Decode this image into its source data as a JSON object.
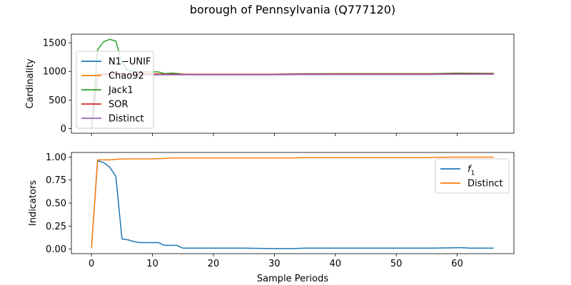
{
  "title": "borough of Pennsylvania (Q777120)",
  "colors": {
    "blue": "#1f77b4",
    "orange": "#ff7f0e",
    "green": "#2ca02c",
    "red": "#d62728",
    "purple": "#9467bd"
  },
  "chart_data": [
    {
      "type": "line",
      "ylabel": "Cardinality",
      "xlim": [
        -3.3,
        69.3
      ],
      "ylim": [
        -80,
        1650
      ],
      "yticks": [
        "0",
        "500",
        "1000",
        "1500"
      ],
      "ytick_values": [
        0,
        500,
        1000,
        1500
      ],
      "xticks": [
        0,
        10,
        20,
        30,
        40,
        50,
        60
      ],
      "show_xticklabels": false,
      "legend": "upper-left",
      "series": [
        {
          "name": "N1−UNIF",
          "color": "#1f77b4",
          "x": [
            0,
            1,
            2,
            3,
            4,
            5,
            6,
            8,
            10,
            12,
            14,
            16,
            20,
            25,
            30,
            35,
            40,
            45,
            50,
            55,
            60,
            66
          ],
          "y": [
            0,
            930,
            940,
            945,
            945,
            945,
            945,
            945,
            945,
            945,
            945,
            945,
            945,
            945,
            945,
            950,
            950,
            950,
            950,
            950,
            955,
            955
          ]
        },
        {
          "name": "Chao92",
          "color": "#ff7f0e",
          "x": [
            0,
            1,
            2,
            3,
            4,
            5,
            6,
            8,
            10,
            12,
            14,
            16,
            20,
            25,
            30,
            35,
            40,
            45,
            50,
            55,
            60,
            66
          ],
          "y": [
            0,
            950,
            960,
            965,
            965,
            965,
            960,
            960,
            960,
            955,
            955,
            950,
            950,
            950,
            950,
            955,
            960,
            960,
            960,
            960,
            965,
            960
          ]
        },
        {
          "name": "Jack1",
          "color": "#2ca02c",
          "x": [
            0,
            1,
            2,
            3,
            4,
            5,
            6,
            7,
            8,
            9,
            10,
            11,
            12,
            13,
            14,
            15,
            20,
            25,
            30,
            35,
            40,
            45,
            50,
            55,
            60,
            66
          ],
          "y": [
            0,
            1380,
            1520,
            1560,
            1530,
            1150,
            1010,
            1000,
            995,
            990,
            995,
            990,
            960,
            970,
            965,
            950,
            950,
            950,
            950,
            960,
            960,
            960,
            960,
            960,
            970,
            965
          ]
        },
        {
          "name": "SOR",
          "color": "#d62728",
          "x": [
            0,
            1,
            2,
            3,
            4,
            5,
            6,
            8,
            10,
            12,
            14,
            16,
            20,
            25,
            30,
            35,
            40,
            45,
            50,
            55,
            60,
            66
          ],
          "y": [
            0,
            940,
            950,
            955,
            955,
            955,
            950,
            950,
            950,
            950,
            950,
            950,
            950,
            950,
            950,
            955,
            955,
            955,
            955,
            955,
            960,
            960
          ]
        },
        {
          "name": "Distinct",
          "color": "#9467bd",
          "x": [
            0,
            1,
            2,
            3,
            4,
            5,
            6,
            8,
            10,
            12,
            14,
            16,
            20,
            25,
            30,
            35,
            40,
            45,
            50,
            55,
            60,
            66
          ],
          "y": [
            0,
            935,
            940,
            940,
            940,
            940,
            940,
            940,
            940,
            940,
            940,
            940,
            940,
            940,
            940,
            945,
            945,
            945,
            945,
            945,
            950,
            950
          ]
        }
      ]
    },
    {
      "type": "line",
      "ylabel": "Indicators",
      "xlabel": "Sample Periods",
      "xlim": [
        -3.3,
        69.3
      ],
      "ylim": [
        -0.05,
        1.05
      ],
      "yticks": [
        "0.00",
        "0.25",
        "0.50",
        "0.75",
        "1.00"
      ],
      "ytick_values": [
        0,
        0.25,
        0.5,
        0.75,
        1.0
      ],
      "xticks": [
        0,
        10,
        20,
        30,
        40,
        50,
        60
      ],
      "xticklabels": [
        "0",
        "10",
        "20",
        "30",
        "40",
        "50",
        "60"
      ],
      "legend": "upper-right",
      "series": [
        {
          "name": "f1",
          "label_main": "f",
          "label_sub": "1",
          "color": "#1f77b4",
          "x": [
            0,
            1,
            2,
            3,
            4,
            5,
            6,
            7,
            8,
            9,
            10,
            11,
            12,
            13,
            14,
            15,
            20,
            25,
            30,
            33,
            35,
            40,
            45,
            50,
            55,
            56,
            60,
            61,
            62,
            66
          ],
          "y": [
            0.01,
            0.96,
            0.94,
            0.89,
            0.79,
            0.11,
            0.1,
            0.08,
            0.07,
            0.07,
            0.07,
            0.07,
            0.04,
            0.04,
            0.04,
            0.01,
            0.01,
            0.01,
            0.005,
            0.005,
            0.01,
            0.01,
            0.01,
            0.01,
            0.01,
            0.01,
            0.015,
            0.015,
            0.01,
            0.01
          ]
        },
        {
          "name": "Distinct",
          "color": "#ff7f0e",
          "x": [
            0,
            1,
            2,
            3,
            4,
            5,
            6,
            8,
            10,
            12,
            13,
            15,
            20,
            25,
            30,
            33,
            35,
            40,
            45,
            50,
            55,
            60,
            66
          ],
          "y": [
            0.01,
            0.97,
            0.97,
            0.97,
            0.975,
            0.98,
            0.98,
            0.98,
            0.98,
            0.985,
            0.99,
            0.99,
            0.99,
            0.99,
            0.99,
            0.99,
            0.995,
            0.995,
            0.995,
            0.995,
            0.995,
            1.0,
            1.0
          ]
        }
      ]
    }
  ]
}
